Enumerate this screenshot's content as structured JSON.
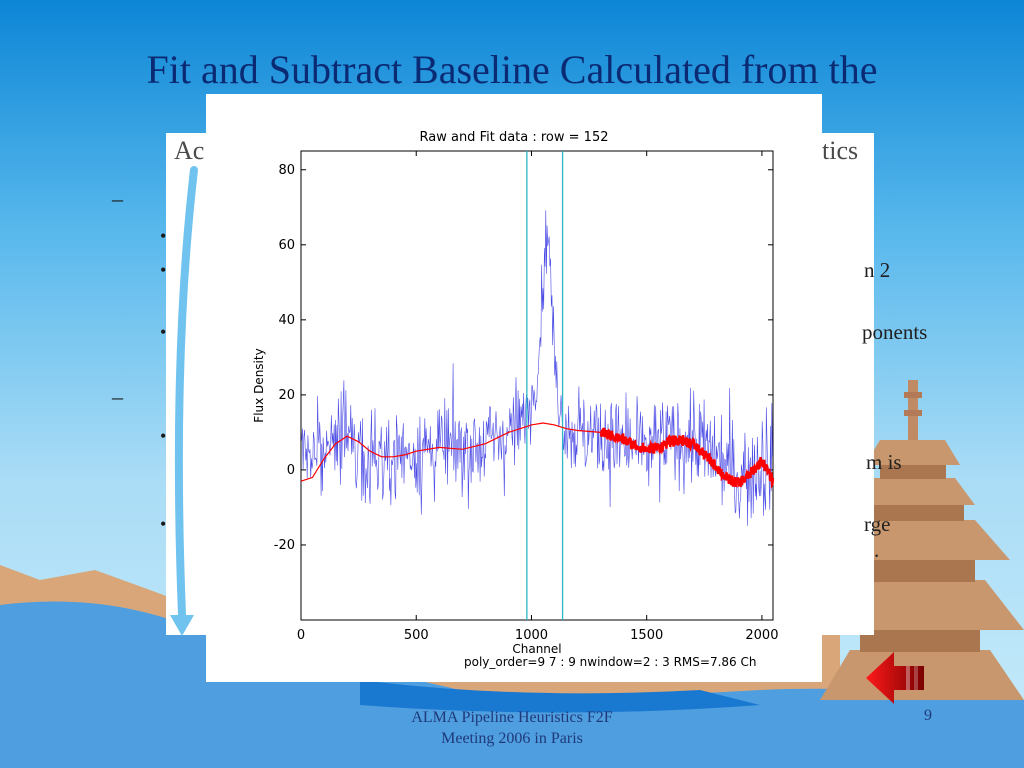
{
  "slide": {
    "title": "Fit and Subtract Baseline Calculated from the",
    "back_left": "Ac",
    "back_right": "tics",
    "fragments": [
      "n 2",
      "ponents",
      "m is",
      "rge",
      "."
    ],
    "footer_line1": "ALMA Pipeline Heuristics F2F",
    "footer_line2": "Meeting 2006 in Paris",
    "page_number": "9"
  },
  "colors": {
    "title": "#0b2a74",
    "raw": "#2a2ae0",
    "fit": "#ff0000",
    "window": "#2cb7c7",
    "nav_arrow": "#cc0000"
  },
  "chart_data": {
    "type": "line",
    "title": "Raw and Fit data : row = 152",
    "xlabel": "Channel",
    "ylabel": "Flux Density",
    "xlim": [
      0,
      2048
    ],
    "ylim": [
      -40,
      85
    ],
    "xticks": [
      0,
      500,
      1000,
      1500,
      2000
    ],
    "yticks": [
      -20,
      0,
      20,
      40,
      60,
      80
    ],
    "window_lines_x": [
      980,
      1135
    ],
    "footer": "poly_order=9 7 : 9  nwindow=2 : 3     RMS=7.86  Ch",
    "series": [
      {
        "style": "noisy raw spectrum",
        "x": [
          0,
          100,
          200,
          300,
          400,
          500,
          600,
          700,
          800,
          900,
          950,
          1000,
          1030,
          1060,
          1075,
          1090,
          1110,
          1140,
          1200,
          1300,
          1400,
          1500,
          1600,
          1700,
          1800,
          1900,
          2000,
          2048
        ],
        "y": [
          4,
          6,
          8,
          4,
          4,
          5,
          6,
          6,
          7,
          10,
          12,
          18,
          30,
          60,
          64,
          40,
          22,
          12,
          10,
          9,
          7,
          5,
          8,
          8,
          4,
          -2,
          2,
          0
        ]
      },
      {
        "style": "polynomial baseline fit",
        "x": [
          0,
          50,
          100,
          150,
          200,
          250,
          300,
          350,
          400,
          450,
          500,
          600,
          700,
          800,
          900,
          1000,
          1050,
          1100,
          1150,
          1200,
          1300,
          1400,
          1450,
          1500,
          1550,
          1600,
          1650,
          1700,
          1750,
          1800,
          1850,
          1900,
          1950,
          2000,
          2048
        ],
        "y": [
          -3,
          -2,
          3,
          7,
          9,
          7.5,
          5,
          3.5,
          3.5,
          4,
          5,
          6,
          5.5,
          7,
          10,
          12,
          12.5,
          12,
          11,
          10.5,
          10,
          8,
          6.5,
          5.5,
          6,
          7.5,
          8,
          7,
          4,
          1,
          -2.5,
          -3.5,
          -1,
          2.5,
          -3
        ]
      }
    ]
  }
}
